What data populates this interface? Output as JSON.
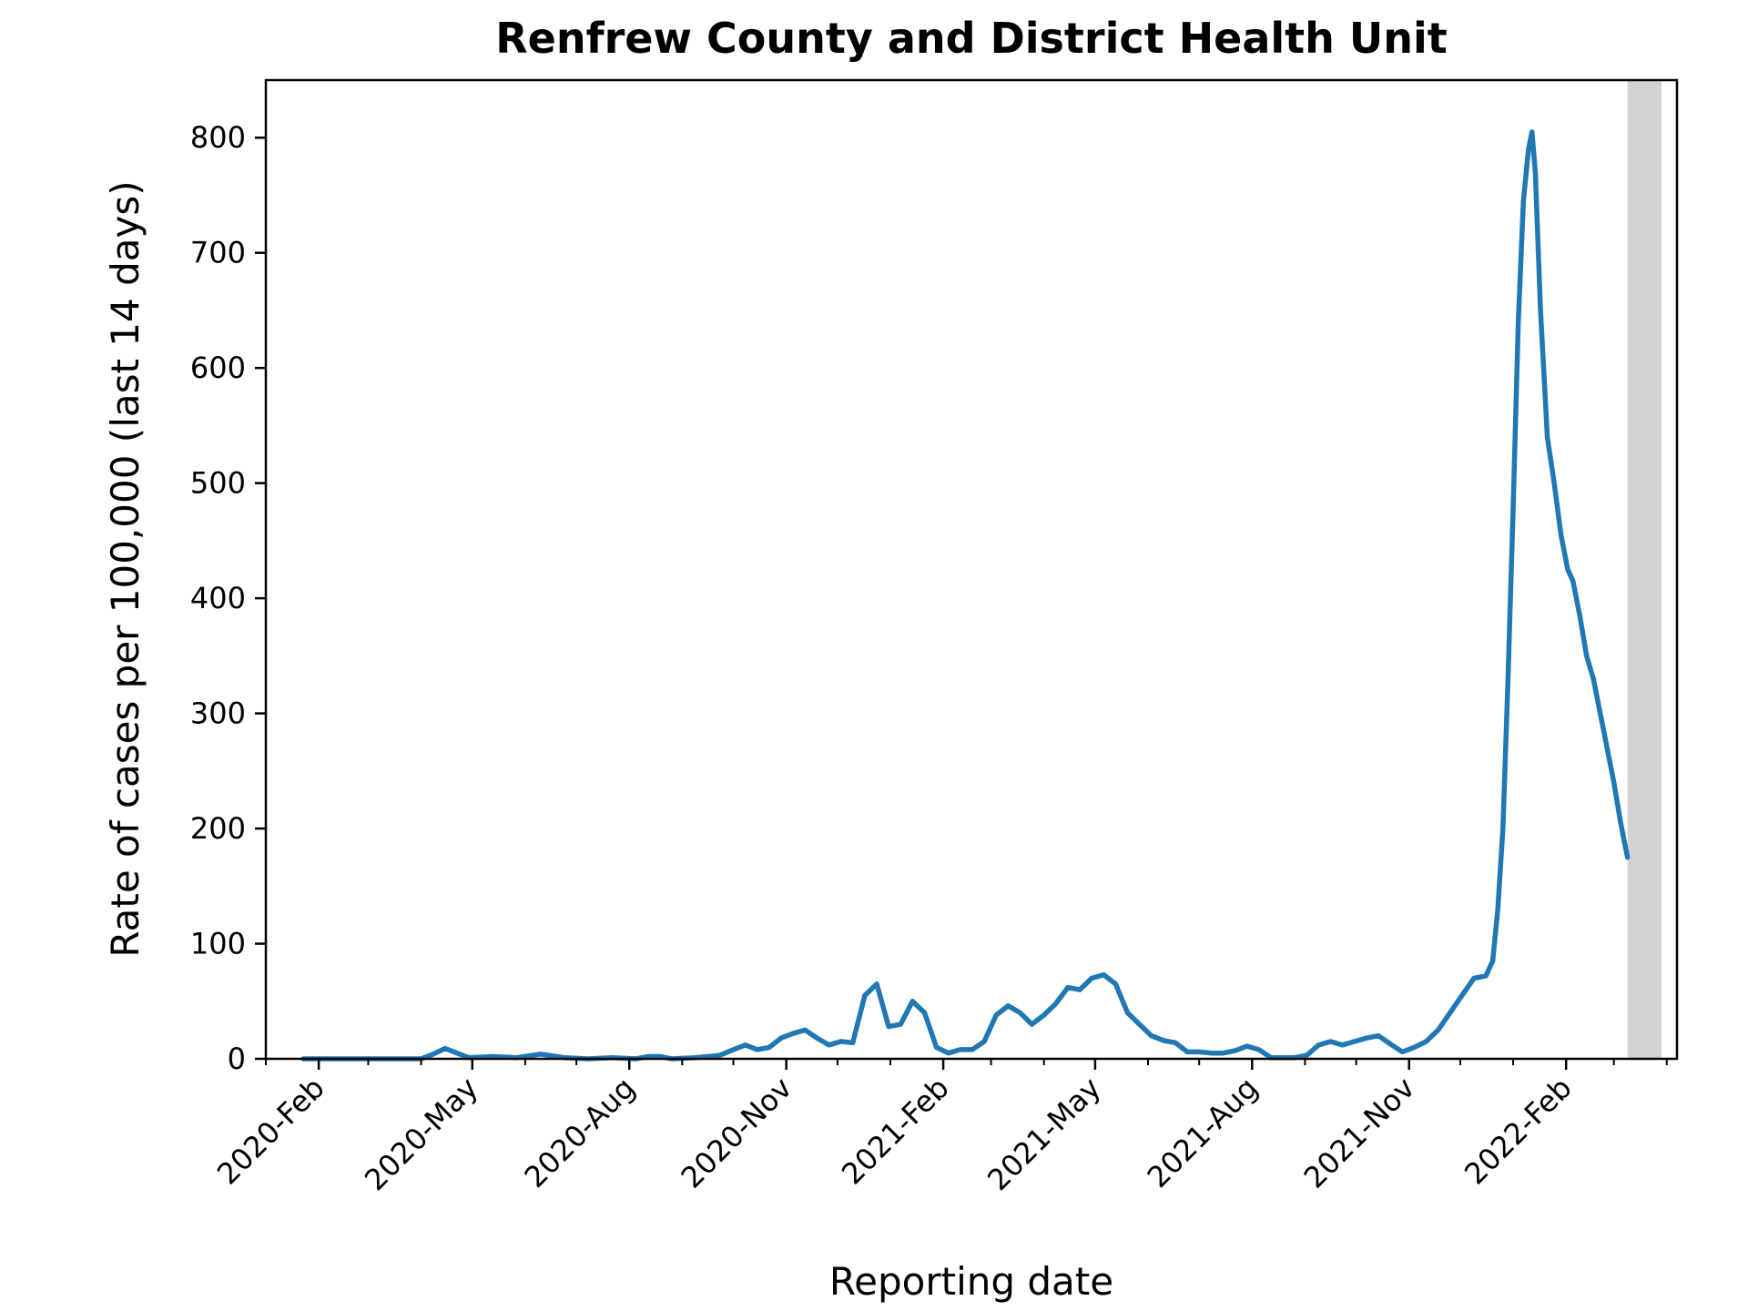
{
  "chart_data": {
    "type": "line",
    "title": "Renfrew County and District Health Unit",
    "xlabel": "Reporting date",
    "ylabel": "Rate of cases per 100,000 (last 14 days)",
    "ylim": [
      0,
      850
    ],
    "xlim": [
      "2020-01-01",
      "2022-04-07"
    ],
    "y_ticks": [
      0,
      100,
      200,
      300,
      400,
      500,
      600,
      700,
      800
    ],
    "x_ticks": [
      {
        "date": "2020-02-01",
        "label": "2020-Feb"
      },
      {
        "date": "2020-05-01",
        "label": "2020-May"
      },
      {
        "date": "2020-08-01",
        "label": "2020-Aug"
      },
      {
        "date": "2020-11-01",
        "label": "2020-Nov"
      },
      {
        "date": "2021-02-01",
        "label": "2021-Feb"
      },
      {
        "date": "2021-05-01",
        "label": "2021-May"
      },
      {
        "date": "2021-08-01",
        "label": "2021-Aug"
      },
      {
        "date": "2021-11-01",
        "label": "2021-Nov"
      },
      {
        "date": "2022-02-01",
        "label": "2022-Feb"
      }
    ],
    "shaded_span": {
      "start": "2022-03-09",
      "end": "2022-03-29",
      "color": "#d3d3d3"
    },
    "grid": false,
    "series": [
      {
        "color": "#1f77b4",
        "points": [
          [
            "2020-01-23",
            0
          ],
          [
            "2020-04-01",
            0
          ],
          [
            "2020-04-08",
            4
          ],
          [
            "2020-04-15",
            9
          ],
          [
            "2020-04-22",
            5
          ],
          [
            "2020-04-29",
            1
          ],
          [
            "2020-05-13",
            2
          ],
          [
            "2020-05-27",
            1
          ],
          [
            "2020-06-10",
            4
          ],
          [
            "2020-06-24",
            1
          ],
          [
            "2020-07-08",
            0
          ],
          [
            "2020-07-22",
            1
          ],
          [
            "2020-08-05",
            0
          ],
          [
            "2020-08-12",
            2
          ],
          [
            "2020-08-19",
            2
          ],
          [
            "2020-08-26",
            0
          ],
          [
            "2020-09-09",
            1
          ],
          [
            "2020-09-23",
            3
          ],
          [
            "2020-10-01",
            8
          ],
          [
            "2020-10-08",
            12
          ],
          [
            "2020-10-15",
            8
          ],
          [
            "2020-10-22",
            10
          ],
          [
            "2020-10-29",
            18
          ],
          [
            "2020-11-05",
            22
          ],
          [
            "2020-11-12",
            25
          ],
          [
            "2020-11-19",
            18
          ],
          [
            "2020-11-26",
            12
          ],
          [
            "2020-12-03",
            15
          ],
          [
            "2020-12-10",
            14
          ],
          [
            "2020-12-17",
            55
          ],
          [
            "2020-12-24",
            65
          ],
          [
            "2020-12-31",
            28
          ],
          [
            "2021-01-07",
            30
          ],
          [
            "2021-01-14",
            50
          ],
          [
            "2021-01-21",
            40
          ],
          [
            "2021-01-28",
            10
          ],
          [
            "2021-02-04",
            5
          ],
          [
            "2021-02-11",
            8
          ],
          [
            "2021-02-18",
            8
          ],
          [
            "2021-02-25",
            15
          ],
          [
            "2021-03-04",
            38
          ],
          [
            "2021-03-11",
            46
          ],
          [
            "2021-03-18",
            40
          ],
          [
            "2021-03-25",
            30
          ],
          [
            "2021-04-01",
            38
          ],
          [
            "2021-04-08",
            48
          ],
          [
            "2021-04-15",
            62
          ],
          [
            "2021-04-22",
            60
          ],
          [
            "2021-04-29",
            70
          ],
          [
            "2021-05-06",
            73
          ],
          [
            "2021-05-13",
            65
          ],
          [
            "2021-05-20",
            40
          ],
          [
            "2021-05-27",
            30
          ],
          [
            "2021-06-03",
            20
          ],
          [
            "2021-06-10",
            16
          ],
          [
            "2021-06-17",
            14
          ],
          [
            "2021-06-24",
            6
          ],
          [
            "2021-07-01",
            6
          ],
          [
            "2021-07-08",
            5
          ],
          [
            "2021-07-15",
            5
          ],
          [
            "2021-07-22",
            7
          ],
          [
            "2021-07-29",
            11
          ],
          [
            "2021-08-05",
            8
          ],
          [
            "2021-08-12",
            1
          ],
          [
            "2021-08-19",
            1
          ],
          [
            "2021-08-26",
            1
          ],
          [
            "2021-09-02",
            3
          ],
          [
            "2021-09-09",
            12
          ],
          [
            "2021-09-16",
            15
          ],
          [
            "2021-09-23",
            12
          ],
          [
            "2021-09-30",
            15
          ],
          [
            "2021-10-07",
            18
          ],
          [
            "2021-10-14",
            20
          ],
          [
            "2021-10-21",
            13
          ],
          [
            "2021-10-28",
            6
          ],
          [
            "2021-11-04",
            10
          ],
          [
            "2021-11-11",
            15
          ],
          [
            "2021-11-18",
            25
          ],
          [
            "2021-11-25",
            40
          ],
          [
            "2021-12-02",
            55
          ],
          [
            "2021-12-09",
            70
          ],
          [
            "2021-12-16",
            72
          ],
          [
            "2021-12-20",
            85
          ],
          [
            "2021-12-23",
            130
          ],
          [
            "2021-12-26",
            200
          ],
          [
            "2021-12-29",
            330
          ],
          [
            "2022-01-01",
            480
          ],
          [
            "2022-01-04",
            640
          ],
          [
            "2022-01-07",
            745
          ],
          [
            "2022-01-10",
            790
          ],
          [
            "2022-01-12",
            805
          ],
          [
            "2022-01-14",
            770
          ],
          [
            "2022-01-17",
            650
          ],
          [
            "2022-01-21",
            540
          ],
          [
            "2022-01-25",
            500
          ],
          [
            "2022-01-29",
            455
          ],
          [
            "2022-02-02",
            425
          ],
          [
            "2022-02-05",
            415
          ],
          [
            "2022-02-09",
            385
          ],
          [
            "2022-02-13",
            350
          ],
          [
            "2022-02-17",
            330
          ],
          [
            "2022-02-21",
            300
          ],
          [
            "2022-02-25",
            270
          ],
          [
            "2022-03-01",
            240
          ],
          [
            "2022-03-05",
            205
          ],
          [
            "2022-03-09",
            175
          ]
        ]
      }
    ]
  }
}
